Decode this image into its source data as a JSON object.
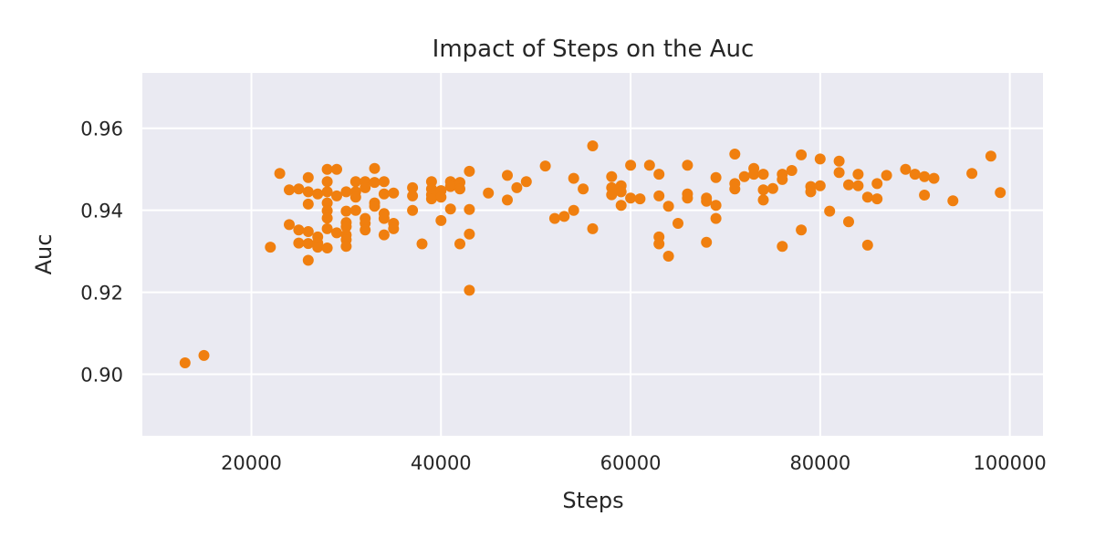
{
  "chart_data": {
    "type": "scatter",
    "title": "Impact of Steps on the Auc",
    "xlabel": "Steps",
    "ylabel": "Auc",
    "xlim": [
      8500,
      103500
    ],
    "ylim": [
      0.885,
      0.9735
    ],
    "xticks": [
      20000,
      40000,
      60000,
      80000,
      100000
    ],
    "yticks": [
      0.9,
      0.92,
      0.94,
      0.96
    ],
    "xtick_labels": [
      "20000",
      "40000",
      "60000",
      "80000",
      "100000"
    ],
    "ytick_labels": [
      "0.90",
      "0.92",
      "0.94",
      "0.96"
    ],
    "grid": true,
    "legend": "none",
    "colors": {
      "marker": "#f07f0f",
      "background": "#eaeaf2",
      "grid": "#ffffff"
    },
    "series": [
      {
        "points": [
          [
            13000,
            0.9028
          ],
          [
            15000,
            0.9046
          ],
          [
            22000,
            0.931
          ],
          [
            23000,
            0.949
          ],
          [
            24000,
            0.945
          ],
          [
            24000,
            0.9365
          ],
          [
            25000,
            0.9452
          ],
          [
            25000,
            0.9352
          ],
          [
            25000,
            0.932
          ],
          [
            26000,
            0.948
          ],
          [
            26000,
            0.9445
          ],
          [
            26000,
            0.9415
          ],
          [
            26000,
            0.9348
          ],
          [
            26000,
            0.9319
          ],
          [
            26000,
            0.9278
          ],
          [
            27000,
            0.944
          ],
          [
            27000,
            0.9335
          ],
          [
            27000,
            0.932
          ],
          [
            27000,
            0.931
          ],
          [
            28000,
            0.95
          ],
          [
            28000,
            0.947
          ],
          [
            28000,
            0.9445
          ],
          [
            28000,
            0.9418
          ],
          [
            28000,
            0.9399
          ],
          [
            28000,
            0.9381
          ],
          [
            28000,
            0.9355
          ],
          [
            28000,
            0.9308
          ],
          [
            29000,
            0.95
          ],
          [
            29000,
            0.9435
          ],
          [
            29000,
            0.9345
          ],
          [
            30000,
            0.9445
          ],
          [
            30000,
            0.9398
          ],
          [
            30000,
            0.937
          ],
          [
            30000,
            0.936
          ],
          [
            30000,
            0.934
          ],
          [
            30000,
            0.9328
          ],
          [
            30000,
            0.9312
          ],
          [
            31000,
            0.947
          ],
          [
            31000,
            0.9445
          ],
          [
            31000,
            0.9432
          ],
          [
            31000,
            0.94
          ],
          [
            32000,
            0.947
          ],
          [
            32000,
            0.9455
          ],
          [
            32000,
            0.938
          ],
          [
            32000,
            0.9368
          ],
          [
            32000,
            0.9352
          ],
          [
            33000,
            0.9502
          ],
          [
            33000,
            0.9468
          ],
          [
            33000,
            0.9418
          ],
          [
            33000,
            0.941
          ],
          [
            34000,
            0.947
          ],
          [
            34000,
            0.944
          ],
          [
            34000,
            0.9392
          ],
          [
            34000,
            0.938
          ],
          [
            34000,
            0.934
          ],
          [
            35000,
            0.9442
          ],
          [
            35000,
            0.9368
          ],
          [
            35000,
            0.9355
          ],
          [
            37000,
            0.9455
          ],
          [
            37000,
            0.9435
          ],
          [
            37000,
            0.94
          ],
          [
            38000,
            0.9318
          ],
          [
            39000,
            0.947
          ],
          [
            39000,
            0.9452
          ],
          [
            39000,
            0.9438
          ],
          [
            39000,
            0.9428
          ],
          [
            40000,
            0.9448
          ],
          [
            40000,
            0.9432
          ],
          [
            40000,
            0.9375
          ],
          [
            41000,
            0.947
          ],
          [
            41000,
            0.9458
          ],
          [
            41000,
            0.9403
          ],
          [
            42000,
            0.9468
          ],
          [
            42000,
            0.9452
          ],
          [
            42000,
            0.9318
          ],
          [
            43000,
            0.9495
          ],
          [
            43000,
            0.9402
          ],
          [
            43000,
            0.9342
          ],
          [
            43000,
            0.9205
          ],
          [
            45000,
            0.9442
          ],
          [
            47000,
            0.9485
          ],
          [
            47000,
            0.9425
          ],
          [
            48000,
            0.9455
          ],
          [
            49000,
            0.947
          ],
          [
            51000,
            0.9508
          ],
          [
            52000,
            0.938
          ],
          [
            53000,
            0.9385
          ],
          [
            54000,
            0.9478
          ],
          [
            54000,
            0.94
          ],
          [
            55000,
            0.9452
          ],
          [
            56000,
            0.9557
          ],
          [
            56000,
            0.9355
          ],
          [
            58000,
            0.9482
          ],
          [
            58000,
            0.9455
          ],
          [
            58000,
            0.9438
          ],
          [
            59000,
            0.946
          ],
          [
            59000,
            0.9445
          ],
          [
            59000,
            0.9412
          ],
          [
            60000,
            0.951
          ],
          [
            60000,
            0.943
          ],
          [
            61000,
            0.9428
          ],
          [
            62000,
            0.951
          ],
          [
            63000,
            0.9488
          ],
          [
            63000,
            0.9435
          ],
          [
            63000,
            0.9335
          ],
          [
            63000,
            0.9318
          ],
          [
            64000,
            0.941
          ],
          [
            64000,
            0.9288
          ],
          [
            65000,
            0.9368
          ],
          [
            66000,
            0.951
          ],
          [
            66000,
            0.944
          ],
          [
            66000,
            0.943
          ],
          [
            68000,
            0.943
          ],
          [
            68000,
            0.9422
          ],
          [
            68000,
            0.9322
          ],
          [
            69000,
            0.948
          ],
          [
            69000,
            0.9412
          ],
          [
            69000,
            0.938
          ],
          [
            71000,
            0.9537
          ],
          [
            71000,
            0.9465
          ],
          [
            71000,
            0.9452
          ],
          [
            72000,
            0.9482
          ],
          [
            73000,
            0.9502
          ],
          [
            73000,
            0.9488
          ],
          [
            74000,
            0.9488
          ],
          [
            74000,
            0.945
          ],
          [
            74000,
            0.9425
          ],
          [
            75000,
            0.9453
          ],
          [
            76000,
            0.9488
          ],
          [
            76000,
            0.9475
          ],
          [
            76000,
            0.9312
          ],
          [
            77000,
            0.9497
          ],
          [
            78000,
            0.9535
          ],
          [
            78000,
            0.9352
          ],
          [
            79000,
            0.9458
          ],
          [
            79000,
            0.9445
          ],
          [
            80000,
            0.9525
          ],
          [
            80000,
            0.946
          ],
          [
            81000,
            0.9398
          ],
          [
            82000,
            0.952
          ],
          [
            82000,
            0.9492
          ],
          [
            83000,
            0.9462
          ],
          [
            83000,
            0.9372
          ],
          [
            84000,
            0.9488
          ],
          [
            84000,
            0.946
          ],
          [
            85000,
            0.9432
          ],
          [
            85000,
            0.9315
          ],
          [
            86000,
            0.9465
          ],
          [
            86000,
            0.9428
          ],
          [
            87000,
            0.9485
          ],
          [
            89000,
            0.95
          ],
          [
            90000,
            0.9488
          ],
          [
            91000,
            0.9482
          ],
          [
            91000,
            0.9437
          ],
          [
            92000,
            0.9478
          ],
          [
            94000,
            0.9423
          ],
          [
            96000,
            0.949
          ],
          [
            98000,
            0.9532
          ],
          [
            99000,
            0.9443
          ]
        ]
      }
    ]
  }
}
